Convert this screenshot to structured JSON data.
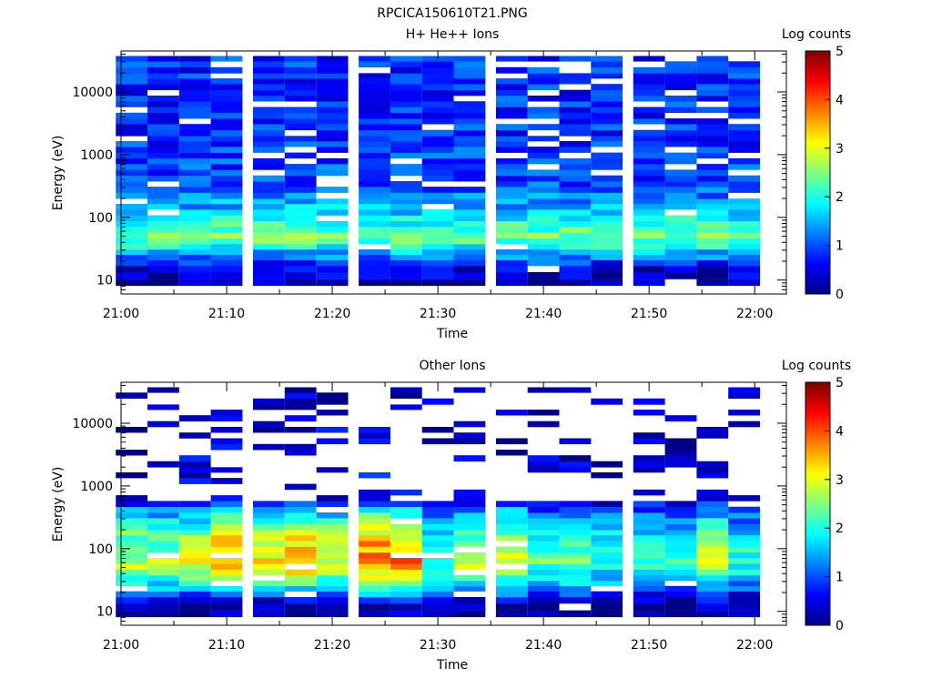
{
  "figure_title": "RPCICA150610T21.PNG",
  "chart_data": [
    {
      "type": "heatmap",
      "title": "H+ He++ Ions",
      "xlabel": "Time",
      "ylabel": "Energy (eV)",
      "colorbar_label": "Log counts",
      "x_range": [
        "21:00",
        "22:03"
      ],
      "x_ticks": [
        "21:00",
        "21:10",
        "21:20",
        "21:30",
        "21:40",
        "21:50",
        "22:00"
      ],
      "y_scale": "log",
      "y_range": [
        6,
        45000
      ],
      "y_ticks": [
        "10",
        "100",
        "1000",
        "10000"
      ],
      "color_range": [
        0,
        5
      ],
      "colorbar_ticks": [
        "0",
        "1",
        "2",
        "3",
        "4",
        "5"
      ],
      "colormap": "jet",
      "sweep_times": [
        "21:01",
        "21:04",
        "21:07",
        "21:10",
        "21:14",
        "21:17",
        "21:20",
        "21:24",
        "21:27",
        "21:30",
        "21:33",
        "21:37",
        "21:40",
        "21:43",
        "21:46",
        "21:50",
        "21:53",
        "21:56",
        "21:59"
      ],
      "energy_ev": [
        9,
        12,
        15,
        19,
        23,
        28,
        34,
        42,
        52,
        64,
        79,
        97,
        120,
        150,
        180,
        220,
        280,
        340,
        420,
        520,
        640,
        790,
        970,
        1200,
        1500,
        1800,
        2200,
        2800,
        3400,
        4200,
        5200,
        6400,
        7900,
        9700,
        12000,
        15000,
        18000,
        22000,
        28000,
        34000
      ],
      "band_profile": [
        {
          "energy_ev": 9,
          "log_counts": 0.1
        },
        {
          "energy_ev": 15,
          "log_counts": 0.3
        },
        {
          "energy_ev": 30,
          "log_counts": 1.0
        },
        {
          "energy_ev": 50,
          "log_counts": 1.5
        },
        {
          "energy_ev": 100,
          "log_counts": 1.1
        },
        {
          "energy_ev": 300,
          "log_counts": 0.6
        },
        {
          "energy_ev": 3000,
          "log_counts": 0.5
        },
        {
          "energy_ev": 30000,
          "log_counts": 0.5
        }
      ],
      "peak_log_counts": 2.5
    },
    {
      "type": "heatmap",
      "title": "Other Ions",
      "xlabel": "Time",
      "ylabel": "Energy (eV)",
      "colorbar_label": "Log counts",
      "x_range": [
        "21:00",
        "22:03"
      ],
      "x_ticks": [
        "21:00",
        "21:10",
        "21:20",
        "21:30",
        "21:40",
        "21:50",
        "22:00"
      ],
      "y_scale": "log",
      "y_range": [
        6,
        45000
      ],
      "y_ticks": [
        "10",
        "100",
        "1000",
        "10000"
      ],
      "color_range": [
        0,
        5
      ],
      "colorbar_ticks": [
        "0",
        "1",
        "2",
        "3",
        "4",
        "5"
      ],
      "colormap": "jet",
      "sweep_times": [
        "21:01",
        "21:04",
        "21:07",
        "21:10",
        "21:14",
        "21:17",
        "21:20",
        "21:24",
        "21:27",
        "21:30",
        "21:33",
        "21:37",
        "21:40",
        "21:43",
        "21:46",
        "21:50",
        "21:53",
        "21:56",
        "21:59"
      ],
      "energy_ev": [
        9,
        12,
        15,
        19,
        23,
        28,
        34,
        42,
        52,
        64,
        79,
        97,
        120,
        150,
        180,
        220,
        280,
        340,
        420,
        520,
        640,
        790,
        970,
        1200,
        1500,
        1800,
        2200,
        2800,
        3400,
        4200,
        5200,
        6400,
        7900,
        9700,
        12000,
        15000,
        18000,
        22000,
        28000,
        34000
      ],
      "sweep_peak_log_counts": [
        2.9,
        2.7,
        3.0,
        3.7,
        3.3,
        3.6,
        3.1,
        4.0,
        3.8,
        2.3,
        2.8,
        3.0,
        2.3,
        2.5,
        2.1,
        2.1,
        2.1,
        2.8,
        2.0
      ],
      "band_profile": [
        {
          "energy_ev": 9,
          "log_counts": 0.2
        },
        {
          "energy_ev": 15,
          "log_counts": 0.5
        },
        {
          "energy_ev": 25,
          "log_counts": 1.8
        },
        {
          "energy_ev": 60,
          "log_counts": 3.0
        },
        {
          "energy_ev": 150,
          "log_counts": 2.5
        },
        {
          "energy_ev": 400,
          "log_counts": 1.5
        },
        {
          "energy_ev": 600,
          "log_counts": 0.5
        },
        {
          "energy_ev": 30000,
          "log_counts": 0.3
        }
      ]
    }
  ]
}
